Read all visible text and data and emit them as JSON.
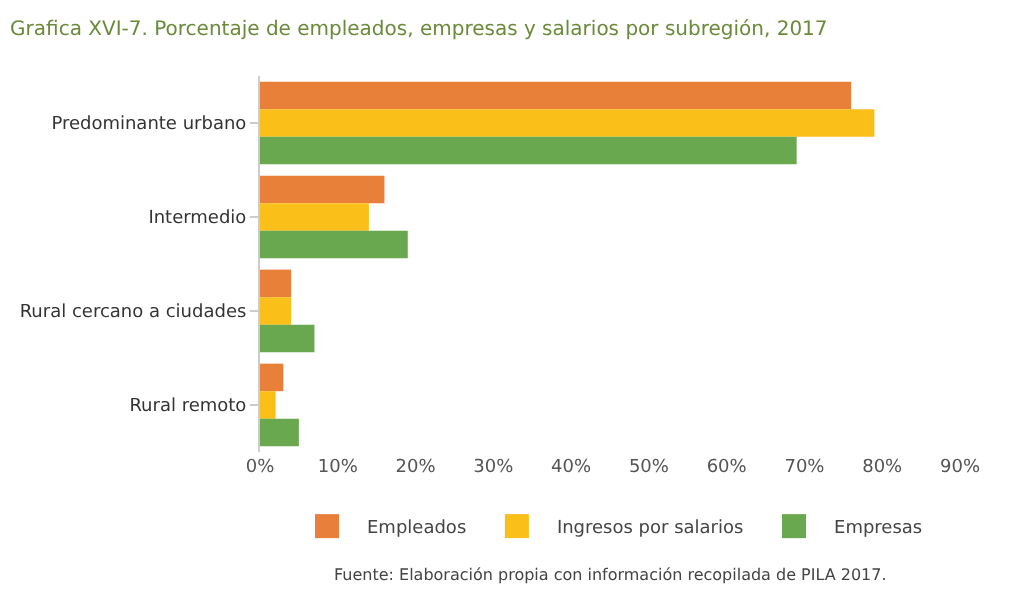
{
  "chart_data": {
    "type": "bar",
    "orientation": "horizontal",
    "title": "Grafica XVI-7. Porcentaje de empleados, empresas y salarios por subregión, 2017",
    "categories": [
      "Predominante urbano",
      "Intermedio",
      "Rural cercano a ciudades",
      "Rural remoto"
    ],
    "series": [
      {
        "name": "Empleados",
        "color": "#e8803a",
        "values": [
          76,
          16,
          4,
          3
        ]
      },
      {
        "name": "Ingresos por salarios",
        "color": "#fbbf1a",
        "values": [
          79,
          14,
          4,
          2
        ]
      },
      {
        "name": "Empresas",
        "color": "#6aa84f",
        "values": [
          69,
          19,
          7,
          5
        ]
      }
    ],
    "xlim": [
      0,
      90
    ],
    "xticks": [
      {
        "value": 0,
        "label": "0%"
      },
      {
        "value": 10,
        "label": "10%"
      },
      {
        "value": 20,
        "label": "20%"
      },
      {
        "value": 30,
        "label": "30%"
      },
      {
        "value": 40,
        "label": "40%"
      },
      {
        "value": 50,
        "label": "50%"
      },
      {
        "value": 60,
        "label": "60%"
      },
      {
        "value": 70,
        "label": "70%"
      },
      {
        "value": 80,
        "label": "80%"
      },
      {
        "value": 90,
        "label": "90%"
      }
    ],
    "grid": false,
    "legend": "bottom",
    "annotations": [
      "Fuente: Elaboración propia con información recopilada de PILA 2017."
    ]
  }
}
